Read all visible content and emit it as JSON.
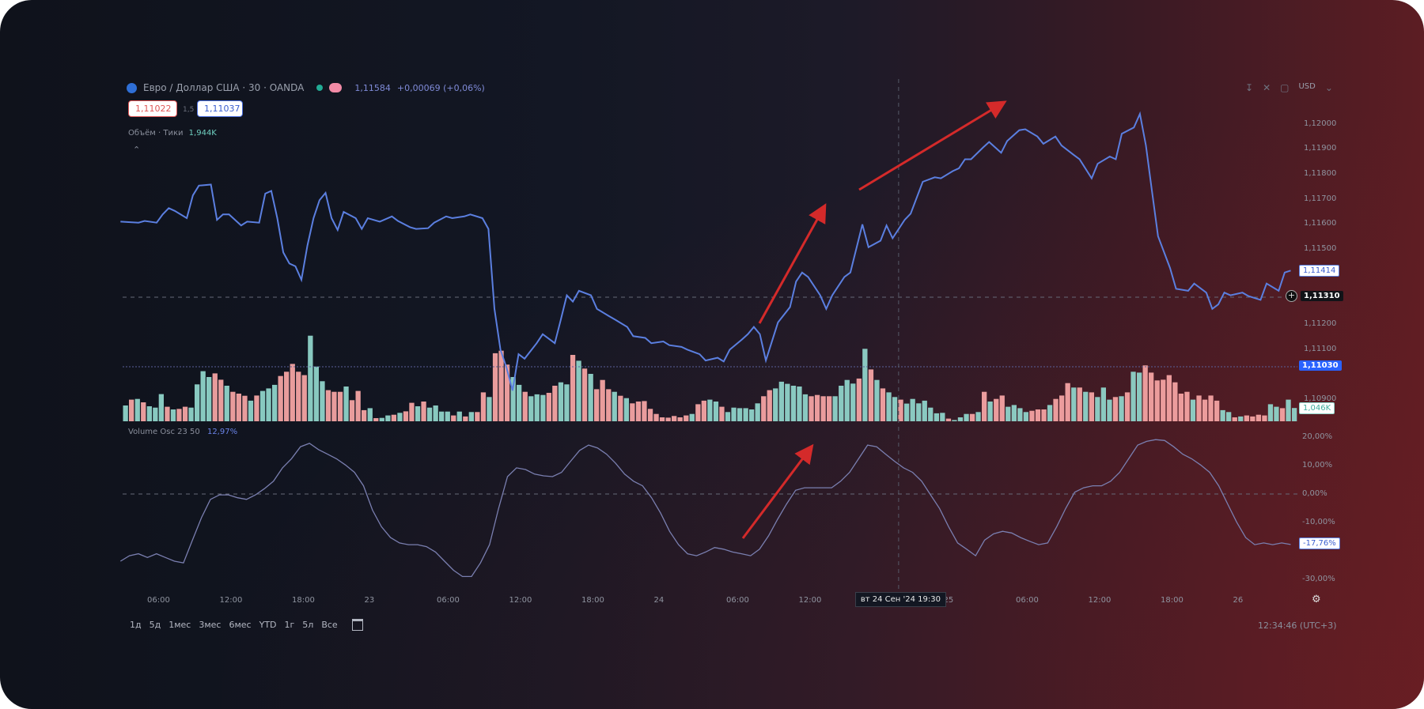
{
  "header": {
    "symbol": "Евро / Доллар США · 30 · OANDA",
    "last_price": "1,11584",
    "change": "+0,00069 (+0,06%)",
    "bid": "1,11022",
    "spread": "1,5",
    "ask": "1,11037",
    "volume_label": "Объём · Тики",
    "volume_value": "1,944K"
  },
  "toolbar_right": {
    "currency": "USD",
    "icons": [
      "download-icon",
      "fullscreen-collapse-icon",
      "expand-icon",
      "chevron-down-icon"
    ]
  },
  "osc_legend": {
    "name": "Volume Osc 23 50",
    "value": "12,97%"
  },
  "price_axis": {
    "ticks": [
      {
        "label": "1,12000",
        "v": 1.12
      },
      {
        "label": "1,11900",
        "v": 1.119
      },
      {
        "label": "1,11800",
        "v": 1.118
      },
      {
        "label": "1,11700",
        "v": 1.117
      },
      {
        "label": "1,11600",
        "v": 1.116
      },
      {
        "label": "1,11500",
        "v": 1.115
      },
      {
        "label": "1,11200",
        "v": 1.112
      },
      {
        "label": "1,11100",
        "v": 1.111
      },
      {
        "label": "1,10900",
        "v": 1.109
      }
    ],
    "last_label": "1,11414",
    "last_value": 1.11414,
    "crosshair_label": "1,11310",
    "crosshair_value": 1.1131,
    "line_label": "1,11030",
    "line_value": 1.1103,
    "volume_label": "1,046K"
  },
  "osc_axis": {
    "ticks": [
      {
        "label": "20,00%",
        "v": 20
      },
      {
        "label": "10,00%",
        "v": 10
      },
      {
        "label": "0,00%",
        "v": 0
      },
      {
        "label": "-10,00%",
        "v": -10
      },
      {
        "label": "-30,00%",
        "v": -30
      }
    ],
    "last_label": "-17,76%",
    "last_value": -17.76
  },
  "time_axis": {
    "ticks": [
      {
        "label": "06:00",
        "t": "22 06:00"
      },
      {
        "label": "12:00",
        "t": "22 12:00"
      },
      {
        "label": "18:00",
        "t": "22 18:00"
      },
      {
        "label": "23",
        "t": "23 00:00"
      },
      {
        "label": "06:00",
        "t": "23 06:00"
      },
      {
        "label": "12:00",
        "t": "23 12:00"
      },
      {
        "label": "18:00",
        "t": "23 18:00"
      },
      {
        "label": "24",
        "t": "24 00:00"
      },
      {
        "label": "06:00",
        "t": "24 06:00"
      },
      {
        "label": "12:00",
        "t": "24 12:00"
      },
      {
        "label": "25",
        "t": "25 00:00"
      },
      {
        "label": "06:00",
        "t": "25 06:00"
      },
      {
        "label": "12:00",
        "t": "25 12:00"
      },
      {
        "label": "18:00",
        "t": "25 18:00"
      },
      {
        "label": "26",
        "t": "26 00:00"
      }
    ],
    "crosshair_label": "вт 24 Сен '24   19:30",
    "crosshair_t": "24 19:30"
  },
  "periods": [
    "1д",
    "5д",
    "1мес",
    "3мес",
    "6мес",
    "YTD",
    "1г",
    "5л",
    "Все"
  ],
  "clock": "12:34:46 (UTC+3)",
  "colors": {
    "price_line": "#5b7fe0",
    "up": "#8fd3c9",
    "down": "#f4a3a3",
    "osc_line": "#7a7fb0",
    "arrow": "#d42a2a",
    "accent": "#2962ff"
  },
  "chart_data": [
    {
      "type": "line",
      "points": [
        [
          "22 03:00",
          1.11609
        ],
        [
          "22 04:30",
          1.11605
        ],
        [
          "22 05:00",
          1.11612
        ],
        [
          "22 06:00",
          1.11605
        ],
        [
          "22 06:30",
          1.11638
        ],
        [
          "22 07:00",
          1.11663
        ],
        [
          "22 07:30",
          1.11652
        ],
        [
          "22 08:30",
          1.11623
        ],
        [
          "22 09:00",
          1.11714
        ],
        [
          "22 09:30",
          1.11753
        ],
        [
          "22 10:30",
          1.11757
        ],
        [
          "22 11:00",
          1.11616
        ],
        [
          "22 11:30",
          1.11638
        ],
        [
          "22 12:00",
          1.11638
        ],
        [
          "22 13:00",
          1.11594
        ],
        [
          "22 13:30",
          1.11609
        ],
        [
          "22 14:30",
          1.11605
        ],
        [
          "22 15:00",
          1.11721
        ],
        [
          "22 15:30",
          1.11732
        ],
        [
          "22 16:00",
          1.11623
        ],
        [
          "22 16:30",
          1.11486
        ],
        [
          "22 17:00",
          1.11442
        ],
        [
          "22 17:30",
          1.11431
        ],
        [
          "22 18:00",
          1.11377
        ],
        [
          "22 18:30",
          1.11514
        ],
        [
          "22 19:00",
          1.11623
        ],
        [
          "22 19:30",
          1.11695
        ],
        [
          "22 20:00",
          1.11724
        ],
        [
          "22 20:30",
          1.11623
        ],
        [
          "22 21:00",
          1.11576
        ],
        [
          "22 21:30",
          1.11648
        ],
        [
          "22 22:30",
          1.11623
        ],
        [
          "22 23:00",
          1.1158
        ],
        [
          "22 23:30",
          1.11623
        ],
        [
          "23 00:30",
          1.11609
        ],
        [
          "23 01:30",
          1.1163
        ],
        [
          "23 02:00",
          1.11612
        ],
        [
          "23 03:00",
          1.11587
        ],
        [
          "23 03:30",
          1.1158
        ],
        [
          "23 04:30",
          1.11583
        ],
        [
          "23 05:00",
          1.11605
        ],
        [
          "23 06:00",
          1.1163
        ],
        [
          "23 06:30",
          1.11623
        ],
        [
          "23 07:30",
          1.1163
        ],
        [
          "23 08:00",
          1.11638
        ],
        [
          "23 09:00",
          1.11623
        ],
        [
          "23 09:30",
          1.1158
        ],
        [
          "23 10:00",
          1.11261
        ],
        [
          "23 10:30",
          1.11098
        ],
        [
          "23 11:00",
          1.11026
        ],
        [
          "23 11:30",
          1.10935
        ],
        [
          "23 12:00",
          1.1108
        ],
        [
          "23 12:30",
          1.11062
        ],
        [
          "23 13:30",
          1.11124
        ],
        [
          "23 14:00",
          1.1116
        ],
        [
          "23 15:00",
          1.11124
        ],
        [
          "23 15:30",
          1.11218
        ],
        [
          "23 16:00",
          1.11315
        ],
        [
          "23 16:30",
          1.1129
        ],
        [
          "23 17:00",
          1.11333
        ],
        [
          "23 18:00",
          1.11315
        ],
        [
          "23 18:30",
          1.11261
        ],
        [
          "23 19:30",
          1.11232
        ],
        [
          "23 20:00",
          1.11218
        ],
        [
          "23 21:00",
          1.11189
        ],
        [
          "23 21:30",
          1.11152
        ],
        [
          "23 22:30",
          1.11145
        ],
        [
          "23 23:00",
          1.11124
        ],
        [
          "24 00:00",
          1.11131
        ],
        [
          "24 00:30",
          1.11116
        ],
        [
          "24 01:30",
          1.11109
        ],
        [
          "24 02:00",
          1.11098
        ],
        [
          "24 03:00",
          1.1108
        ],
        [
          "24 03:30",
          1.11055
        ],
        [
          "24 04:30",
          1.11066
        ],
        [
          "24 05:00",
          1.11051
        ],
        [
          "24 05:30",
          1.11098
        ],
        [
          "24 06:30",
          1.11138
        ],
        [
          "24 07:00",
          1.1116
        ],
        [
          "24 07:30",
          1.11189
        ],
        [
          "24 08:00",
          1.1116
        ],
        [
          "24 08:30",
          1.11055
        ],
        [
          "24 09:30",
          1.11207
        ],
        [
          "24 10:30",
          1.11268
        ],
        [
          "24 11:00",
          1.1137
        ],
        [
          "24 11:30",
          1.11406
        ],
        [
          "24 12:00",
          1.11388
        ],
        [
          "24 13:00",
          1.11315
        ],
        [
          "24 13:30",
          1.11261
        ],
        [
          "24 14:00",
          1.11315
        ],
        [
          "24 15:00",
          1.11388
        ],
        [
          "24 15:30",
          1.11406
        ],
        [
          "24 16:30",
          1.11598
        ],
        [
          "24 17:00",
          1.11507
        ],
        [
          "24 18:00",
          1.11533
        ],
        [
          "24 18:30",
          1.11594
        ],
        [
          "24 19:00",
          1.11543
        ],
        [
          "24 20:00",
          1.11616
        ],
        [
          "24 20:30",
          1.11641
        ],
        [
          "24 21:30",
          1.11768
        ],
        [
          "24 22:30",
          1.11786
        ],
        [
          "24 23:00",
          1.11782
        ],
        [
          "25 00:00",
          1.11811
        ],
        [
          "25 00:30",
          1.11822
        ],
        [
          "25 01:00",
          1.11858
        ],
        [
          "25 01:30",
          1.11858
        ],
        [
          "25 02:30",
          1.11905
        ],
        [
          "25 03:00",
          1.11927
        ],
        [
          "25 04:00",
          1.11884
        ],
        [
          "25 04:30",
          1.11931
        ],
        [
          "25 05:30",
          1.11974
        ],
        [
          "25 06:00",
          1.11978
        ],
        [
          "25 07:00",
          1.11949
        ],
        [
          "25 07:30",
          1.1192
        ],
        [
          "25 08:30",
          1.11949
        ],
        [
          "25 09:00",
          1.11913
        ],
        [
          "25 10:00",
          1.11876
        ],
        [
          "25 10:30",
          1.11858
        ],
        [
          "25 11:30",
          1.11782
        ],
        [
          "25 12:00",
          1.1184
        ],
        [
          "25 13:00",
          1.11869
        ],
        [
          "25 13:30",
          1.11858
        ],
        [
          "25 14:00",
          1.1196
        ],
        [
          "25 15:00",
          1.11985
        ],
        [
          "25 15:30",
          1.12039
        ],
        [
          "25 16:00",
          1.11913
        ],
        [
          "25 16:30",
          1.11732
        ],
        [
          "25 17:00",
          1.11551
        ],
        [
          "25 18:00",
          1.11424
        ],
        [
          "25 18:30",
          1.11341
        ],
        [
          "25 19:30",
          1.11333
        ],
        [
          "25 20:00",
          1.11362
        ],
        [
          "25 21:00",
          1.11326
        ],
        [
          "25 21:30",
          1.11261
        ],
        [
          "25 22:00",
          1.11279
        ],
        [
          "25 22:30",
          1.11326
        ],
        [
          "25 23:00",
          1.11315
        ],
        [
          "26 00:00",
          1.11326
        ],
        [
          "26 00:30",
          1.11312
        ],
        [
          "26 01:30",
          1.11297
        ],
        [
          "26 02:00",
          1.11362
        ],
        [
          "26 03:00",
          1.11333
        ],
        [
          "26 03:30",
          1.11406
        ],
        [
          "26 04:00",
          1.11414
        ]
      ]
    },
    {
      "type": "bar",
      "unit": "K",
      "values": [
        1.25,
        1.71,
        1.77,
        1.5,
        1.19,
        1.08,
        2.15,
        1.15,
        0.94,
        0.98,
        1.15,
        1.08,
        2.92,
        3.96,
        3.5,
        3.79,
        3.29,
        2.81,
        2.33,
        2.19,
        2.02,
        1.63,
        2.04,
        2.4,
        2.6,
        2.88,
        3.58,
        3.92,
        4.54,
        3.92,
        3.65,
        6.77,
        4.33,
        3.17,
        2.46,
        2.33,
        2.33,
        2.75,
        1.67,
        2.4,
        0.88,
        1.04,
        0.25,
        0.27,
        0.46,
        0.52,
        0.67,
        0.79,
        1.46,
        1.19,
        1.56,
        1.08,
        1.25,
        0.77,
        0.77,
        0.46,
        0.77,
        0.38,
        0.73,
        0.73,
        2.29,
        1.92,
        5.38,
        5.58,
        4.48,
        3.5,
        2.88,
        2.33,
        1.98,
        2.13,
        2.08,
        2.25,
        2.81,
        3.08,
        2.92,
        5.25,
        4.79,
        4.17,
        3.75,
        2.54,
        3.27,
        2.54,
        2.33,
        2.02,
        1.83,
        1.42,
        1.56,
        1.6,
        0.98,
        0.58,
        0.31,
        0.29,
        0.42,
        0.31,
        0.46,
        0.58,
        1.35,
        1.63,
        1.71,
        1.56,
        1.15,
        0.73,
        1.08,
        1.04,
        1.04,
        0.94,
        1.42,
        1.98,
        2.46,
        2.6,
        3.13,
        2.96,
        2.81,
        2.75,
        2.13,
        1.98,
        2.08,
        1.98,
        1.98,
        1.98,
        2.81,
        3.27,
        2.98,
        3.38,
        5.73,
        4.1,
        3.27,
        2.6,
        2.29,
        1.92,
        1.71,
        1.4,
        1.77,
        1.42,
        1.63,
        1.08,
        0.63,
        0.67,
        0.21,
        0.1,
        0.31,
        0.58,
        0.58,
        0.73,
        2.33,
        1.56,
        1.77,
        2.04,
        1.15,
        1.29,
        1.04,
        0.73,
        0.83,
        0.94,
        0.94,
        1.29,
        1.77,
        2.04,
        3.02,
        2.67,
        2.67,
        2.33,
        2.29,
        1.92,
        2.67,
        1.71,
        1.92,
        1.98,
        2.29,
        3.92,
        3.85,
        4.42,
        3.85,
        3.23,
        3.29,
        3.65,
        3.08,
        2.19,
        2.33,
        1.71,
        2.04,
        1.71,
        2.04,
        1.63,
        0.88,
        0.73,
        0.31,
        0.38,
        0.46,
        0.38,
        0.52,
        0.46,
        1.35,
        1.15,
        1.04,
        1.71,
        1.05
      ],
      "directions": "GRGRGGGRGRRGGGGRRGRRRGRGGGRRRRRGGGRRRGRRRGRGGRGRRGRGGGGRGRGRRGRRRGGRGGGRRGGRGRGRRRGRGRRRRRRRRRRGRRGGRGGGGGGRRGGGGGGRRRRGGGGRGRGRGGRGGGGGGGRGGGRGRGRRGGGGRRRGRRRGRGRGGGRGRGGRRRRRRRRGRRRRGGRGRRRRGGRGG"
    },
    {
      "type": "line",
      "unit": "%",
      "t_start": "22 03:00",
      "t_end": "26 04:00",
      "values": [
        -23.6,
        -21.7,
        -21.0,
        -22.3,
        -21.0,
        -22.3,
        -23.6,
        -24.2,
        -16.2,
        -8.3,
        -1.9,
        -0.3,
        -0.3,
        -1.3,
        -1.9,
        -0.3,
        1.9,
        4.5,
        9.2,
        12.4,
        16.6,
        17.8,
        15.6,
        14.0,
        12.4,
        10.2,
        7.6,
        2.9,
        -5.7,
        -11.5,
        -15.3,
        -17.2,
        -17.8,
        -17.8,
        -18.5,
        -20.4,
        -23.6,
        -26.8,
        -29.0,
        -29.0,
        -24.2,
        -17.8,
        -5.1,
        6.1,
        9.2,
        8.6,
        7.0,
        6.4,
        6.1,
        7.6,
        11.5,
        15.3,
        17.2,
        16.2,
        14.0,
        10.8,
        7.0,
        4.5,
        2.9,
        -1.3,
        -6.7,
        -13.1,
        -17.8,
        -21.0,
        -21.7,
        -20.4,
        -18.8,
        -19.4,
        -20.4,
        -21.0,
        -21.7,
        -19.4,
        -14.7,
        -8.9,
        -3.5,
        1.3,
        2.2,
        2.2,
        2.2,
        2.2,
        4.5,
        7.6,
        12.4,
        17.2,
        16.6,
        14.0,
        11.5,
        9.2,
        7.6,
        4.5,
        -0.3,
        -5.1,
        -11.5,
        -17.2,
        -19.4,
        -21.7,
        -16.2,
        -14.0,
        -13.1,
        -13.7,
        -15.3,
        -16.6,
        -17.8,
        -17.2,
        -11.5,
        -5.1,
        0.6,
        2.2,
        2.9,
        2.9,
        4.5,
        7.6,
        12.4,
        17.2,
        18.5,
        19.1,
        18.8,
        16.6,
        14.0,
        12.4,
        10.2,
        7.6,
        2.9,
        -3.5,
        -9.9,
        -15.3,
        -17.8,
        -17.2,
        -17.8,
        -17.2,
        -17.76
      ]
    }
  ]
}
